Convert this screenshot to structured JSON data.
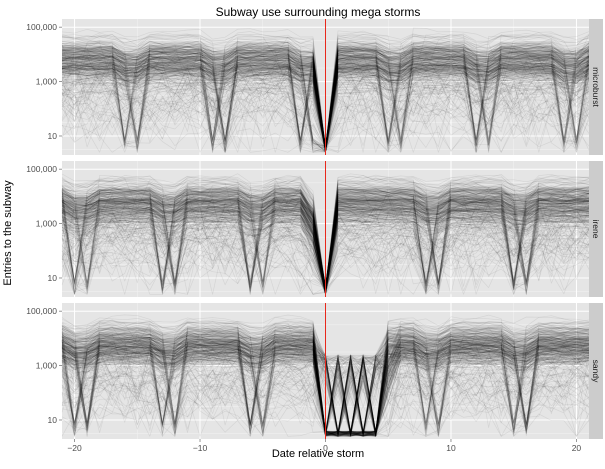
{
  "chart_data": {
    "type": "line",
    "title": "Subway use surrounding mega storms",
    "xlabel": "Date relative storm",
    "ylabel": "Entries to the subway",
    "x_range": [
      -21,
      21
    ],
    "y_scale": "log10",
    "y_range": [
      2,
      200000
    ],
    "x_ticks": [
      -20,
      -10,
      0,
      10,
      20
    ],
    "x_tick_labels": [
      "−20",
      "−10",
      "0",
      "10",
      "20"
    ],
    "y_ticks": [
      10,
      1000,
      100000
    ],
    "y_tick_labels": [
      "10",
      "1,000",
      "100,000"
    ],
    "grid": true,
    "reference_line": {
      "x": 0,
      "color": "#e8281c"
    },
    "line_color": "#000000",
    "panel_background": "#e5e5e5",
    "strip_background": "#cccccc",
    "typical_station_entries": {
      "median": 5500,
      "upper_envelope": 100000,
      "lower_cluster": 300
    },
    "facets": [
      {
        "label": "microburst",
        "weekend_dips": [
          -15.5,
          -8.5,
          -1.5,
          5.5,
          12.5,
          19.5
        ],
        "storm_dip_days": [
          0
        ],
        "recovery_day": 1
      },
      {
        "label": "irene",
        "weekend_dips": [
          -19.5,
          -12.5,
          -5.5,
          8.5,
          15.5
        ],
        "storm_dip_days": [
          0
        ],
        "recovery_day": 1
      },
      {
        "label": "sandy",
        "weekend_dips": [
          -19.5,
          -12.5,
          -5.5,
          8.5,
          15.5
        ],
        "storm_dip_days": [
          0,
          1,
          2,
          3,
          4
        ],
        "recovery_day": 5
      }
    ]
  }
}
